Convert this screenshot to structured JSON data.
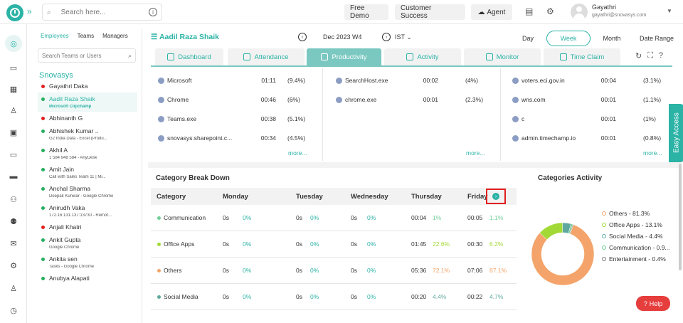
{
  "top": {
    "search_placeholder": "Search here...",
    "free_demo": "Free Demo",
    "customer_success": "Customer Success",
    "agent": "Agent",
    "user_name": "Gayathri",
    "user_email": "gayathri@snovasys.com"
  },
  "employees": {
    "tabs": [
      "Employees",
      "Teams",
      "Managers"
    ],
    "search_placeholder": "Search Teams or Users",
    "org": "Snovasys",
    "list": [
      {
        "name": "Gayathri Daka",
        "activity": "",
        "color": "#e02020"
      },
      {
        "name": "Aadil Raza Shaik",
        "activity": "Microsoft Clipchamp",
        "color": "#27ae60"
      },
      {
        "name": "Abhinanth G",
        "activity": "",
        "color": "#e02020"
      },
      {
        "name": "Abhishek Kumar ..",
        "activity": "G2 India Data - Excel (Produ...",
        "color": "#27ae60"
      },
      {
        "name": "Akhil A",
        "activity": "1 584 948 584 - AnyDesk",
        "color": "#27ae60"
      },
      {
        "name": "Amit Jain",
        "activity": "Call with Sales Team 11 | Mi...",
        "color": "#27ae60"
      },
      {
        "name": "Anchal Sharma",
        "activity": "Deepak Kunwar - Google Chrome",
        "color": "#27ae60"
      },
      {
        "name": "Anirudh Vaka",
        "activity": "172.16.131.137:13730 - Remot...",
        "color": "#27ae60"
      },
      {
        "name": "Anjali Khatri",
        "activity": "",
        "color": "#e02020"
      },
      {
        "name": "Ankit Gupta",
        "activity": "Google Chrome",
        "color": "#27ae60"
      },
      {
        "name": "Ankita sen",
        "activity": "Tasks - Google Chrome",
        "color": "#27ae60"
      },
      {
        "name": "Anubya Alapati",
        "activity": "",
        "color": "#27ae60"
      }
    ]
  },
  "header": {
    "person": "Aadil Raza Shaik",
    "period": "Dec 2023  W4",
    "timezone": "IST",
    "period_tabs": [
      "Day",
      "Week",
      "Month",
      "Date Range"
    ]
  },
  "tabs": [
    "Dashboard",
    "Attendance",
    "Productivity",
    "Activity",
    "Monitor",
    "Time Claim"
  ],
  "apps": {
    "col1": [
      {
        "name": "Microsoft",
        "time": "01:11",
        "pct": "(9.4%)"
      },
      {
        "name": "Chrome",
        "time": "00:46",
        "pct": "(6%)"
      },
      {
        "name": "Teams.exe",
        "time": "00:38",
        "pct": "(5.1%)"
      },
      {
        "name": "snovasys.sharepoint.c...",
        "time": "00:34",
        "pct": "(4.5%)"
      }
    ],
    "col2": [
      {
        "name": "SearchHost.exe",
        "time": "00:02",
        "pct": "(4%)"
      },
      {
        "name": "chrome.exe",
        "time": "00:01",
        "pct": "(2.3%)"
      }
    ],
    "col3": [
      {
        "name": "voters.eci.gov.in",
        "time": "00:04",
        "pct": "(3.1%)"
      },
      {
        "name": "wns.com",
        "time": "00:01",
        "pct": "(1.1%)"
      },
      {
        "name": "c",
        "time": "00:01",
        "pct": "(1%)"
      },
      {
        "name": "admin.timechamp.io",
        "time": "00:01",
        "pct": "(0.8%)"
      }
    ],
    "more": "more..."
  },
  "breakdown": {
    "title": "Category Break Down",
    "headers": [
      "Category",
      "Monday",
      "Tuesday",
      "Wednesday",
      "Thursday",
      "Friday"
    ],
    "rows": [
      {
        "cat": "Communication",
        "color": "#6fcf97",
        "mon": "0s",
        "monp": "0%",
        "tue": "0s",
        "tuep": "0%",
        "wed": "0s",
        "wedp": "0%",
        "thu": "00:04",
        "thup": "1%",
        "fri": "00:05",
        "frip": "1.1%"
      },
      {
        "cat": "Office Apps",
        "color": "#a3d936",
        "mon": "0s",
        "monp": "0%",
        "tue": "0s",
        "tuep": "0%",
        "wed": "0s",
        "wedp": "0%",
        "thu": "01:45",
        "thup": "22.6%",
        "fri": "00:30",
        "frip": "6.2%"
      },
      {
        "cat": "Others",
        "color": "#f4a46a",
        "mon": "0s",
        "monp": "0%",
        "tue": "0s",
        "tuep": "0%",
        "wed": "0s",
        "wedp": "0%",
        "thu": "05:36",
        "thup": "72.1%",
        "fri": "07:06",
        "frip": "87.1%"
      },
      {
        "cat": "Social Media",
        "color": "#5fa8a0",
        "mon": "0s",
        "monp": "0%",
        "tue": "0s",
        "tuep": "0%",
        "wed": "0s",
        "wedp": "0%",
        "thu": "00:20",
        "thup": "4.4%",
        "fri": "00:22",
        "frip": "4.7%"
      }
    ]
  },
  "activity": {
    "title": "Categories Activity",
    "items": [
      {
        "label": "Others - 81.3%",
        "value": 81.3,
        "color": "#f4a46a"
      },
      {
        "label": "Office Apps - 13.1%",
        "value": 13.1,
        "color": "#a3d936"
      },
      {
        "label": "Social Media - 4.4%",
        "value": 4.4,
        "color": "#5fa8a0"
      },
      {
        "label": "Communication - 0.9...",
        "value": 0.9,
        "color": "#6fcf97"
      },
      {
        "label": "Entertainment - 0.4%",
        "value": 0.4,
        "color": "#777777"
      }
    ]
  },
  "easy_access": "Easy Access",
  "help": "Help"
}
